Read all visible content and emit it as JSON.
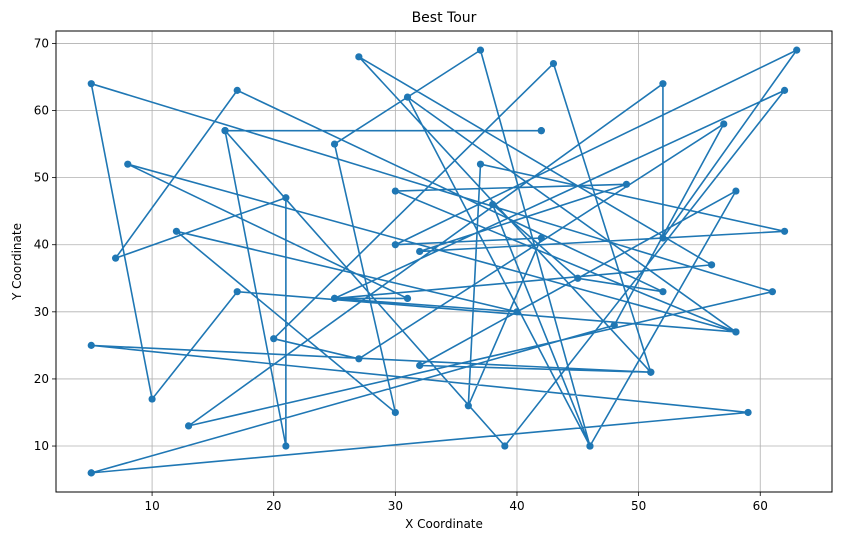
{
  "chart_data": {
    "type": "line",
    "title": "Best Tour",
    "xlabel": "X Coordinate",
    "ylabel": "Y Coordinate",
    "xlim": [
      2.1,
      65.9
    ],
    "ylim": [
      3.15,
      71.85
    ],
    "xticks": [
      10,
      20,
      30,
      40,
      50,
      60
    ],
    "yticks": [
      10,
      20,
      30,
      40,
      50,
      60,
      70
    ],
    "grid": true,
    "colors": {
      "series": "#1f77b4",
      "grid": "#b0b0b0",
      "axes": "#000000"
    },
    "series": [
      {
        "markers": true,
        "points": [
          [
            5,
            6
          ],
          [
            59,
            15
          ],
          [
            5,
            25
          ],
          [
            51,
            21
          ],
          [
            32,
            22
          ],
          [
            58,
            48
          ],
          [
            46,
            10
          ],
          [
            31,
            62
          ],
          [
            58,
            27
          ],
          [
            30,
            48
          ],
          [
            49,
            49
          ],
          [
            32,
            39
          ],
          [
            62,
            42
          ],
          [
            37,
            52
          ],
          [
            36,
            16
          ],
          [
            42,
            41
          ],
          [
            30,
            40
          ],
          [
            63,
            69
          ],
          [
            52,
            41
          ],
          [
            52,
            64
          ],
          [
            13,
            13
          ],
          [
            61,
            33
          ],
          [
            5,
            64
          ],
          [
            10,
            17
          ],
          [
            17,
            33
          ],
          [
            58,
            27
          ],
          [
            8,
            52
          ],
          [
            31,
            32
          ],
          [
            25,
            32
          ],
          [
            40,
            30
          ],
          [
            12,
            42
          ],
          [
            30,
            15
          ],
          [
            25,
            55
          ],
          [
            37,
            69
          ],
          [
            46,
            10
          ],
          [
            38,
            46
          ],
          [
            45,
            35
          ],
          [
            52,
            33
          ],
          [
            17,
            63
          ],
          [
            7,
            38
          ],
          [
            21,
            47
          ],
          [
            21,
            10
          ],
          [
            16,
            57
          ],
          [
            42,
            57
          ],
          [
            42,
            57
          ],
          [
            16,
            57
          ],
          [
            16,
            57
          ],
          [
            39,
            10
          ],
          [
            62,
            63
          ],
          [
            25,
            32
          ],
          [
            56,
            37
          ],
          [
            27,
            68
          ],
          [
            51,
            21
          ],
          [
            43,
            67
          ],
          [
            20,
            26
          ],
          [
            27,
            23
          ],
          [
            57,
            58
          ],
          [
            48,
            28
          ],
          [
            5,
            6
          ]
        ]
      }
    ]
  }
}
